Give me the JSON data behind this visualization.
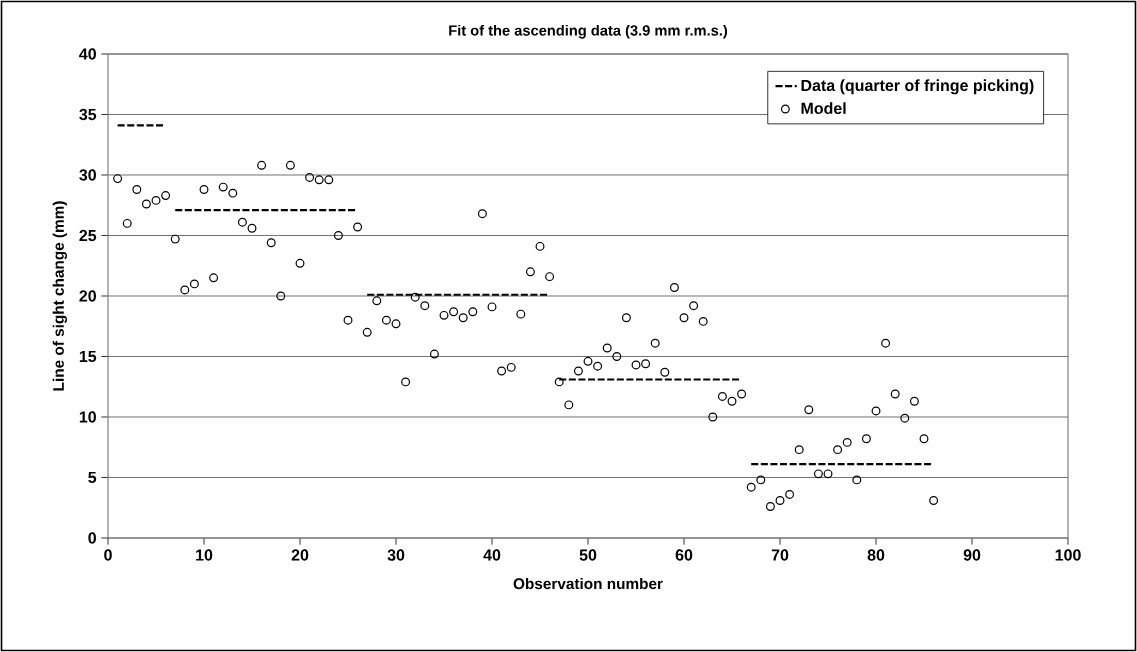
{
  "chart_data": {
    "type": "scatter",
    "title": "Fit of the ascending data (3.9 mm r.m.s.)",
    "xlabel": "Observation number",
    "ylabel": "Line of sight change (mm)",
    "xlim": [
      0,
      100
    ],
    "xticks": [
      0,
      10,
      20,
      30,
      40,
      50,
      60,
      70,
      80,
      90,
      100
    ],
    "ylim": [
      0,
      40
    ],
    "yticks": [
      0,
      5,
      10,
      15,
      20,
      25,
      30,
      35,
      40
    ],
    "grid": "y",
    "legend": "top right",
    "series": [
      {
        "name": "Data (quarter of fringe picking)",
        "type": "line",
        "line_style": "dashed",
        "marker": "none",
        "color": "#000000",
        "x": [
          1,
          2,
          3,
          4,
          5,
          6,
          6.5,
          7,
          8,
          9,
          10,
          11,
          12,
          13,
          14,
          15,
          16,
          17,
          18,
          19,
          20,
          21,
          22,
          23,
          24,
          25,
          26,
          26.5,
          27,
          28,
          29,
          30,
          31,
          32,
          33,
          34,
          35,
          36,
          37,
          38,
          39,
          40,
          41,
          42,
          43,
          44,
          45,
          46,
          46.5,
          47,
          48,
          49,
          50,
          51,
          52,
          53,
          54,
          55,
          56,
          57,
          58,
          59,
          60,
          61,
          62,
          63,
          64,
          65,
          66,
          66.5,
          67,
          68,
          69,
          70,
          71,
          72,
          73,
          74,
          75,
          76,
          77,
          78,
          79,
          80,
          81,
          82,
          83,
          84,
          85,
          86
        ],
        "values": [
          34.1,
          34.1,
          34.1,
          34.1,
          34.1,
          34.1,
          null,
          27.1,
          27.1,
          27.1,
          27.1,
          27.1,
          27.1,
          27.1,
          27.1,
          27.1,
          27.1,
          27.1,
          27.1,
          27.1,
          27.1,
          27.1,
          27.1,
          27.1,
          27.1,
          27.1,
          27.1,
          null,
          20.1,
          20.1,
          20.1,
          20.1,
          20.1,
          20.1,
          20.1,
          20.1,
          20.1,
          20.1,
          20.1,
          20.1,
          20.1,
          20.1,
          20.1,
          20.1,
          20.1,
          20.1,
          20.1,
          20.1,
          null,
          13.1,
          13.1,
          13.1,
          13.1,
          13.1,
          13.1,
          13.1,
          13.1,
          13.1,
          13.1,
          13.1,
          13.1,
          13.1,
          13.1,
          13.1,
          13.1,
          13.1,
          13.1,
          13.1,
          13.1,
          null,
          6.1,
          6.1,
          6.1,
          6.1,
          6.1,
          6.1,
          6.1,
          6.1,
          6.1,
          6.1,
          6.1,
          6.1,
          6.1,
          6.1,
          6.1,
          6.1,
          6.1,
          6.1,
          6.1,
          6.1
        ]
      },
      {
        "name": "Model",
        "marker": "circle",
        "color": "#000000",
        "x": [
          1,
          2,
          3,
          4,
          5,
          6,
          7,
          8,
          9,
          10,
          11,
          12,
          13,
          14,
          15,
          16,
          17,
          18,
          19,
          20,
          21,
          22,
          23,
          24,
          25,
          26,
          27,
          28,
          29,
          30,
          31,
          32,
          33,
          34,
          35,
          36,
          37,
          38,
          39,
          40,
          41,
          42,
          43,
          44,
          45,
          46,
          47,
          48,
          49,
          50,
          51,
          52,
          53,
          54,
          55,
          56,
          57,
          58,
          59,
          60,
          61,
          62,
          63,
          64,
          65,
          66,
          67,
          68,
          69,
          70,
          71,
          72,
          73,
          74,
          75,
          76,
          77,
          78,
          79,
          80,
          81,
          82,
          83,
          84,
          85,
          86
        ],
        "values": [
          29.7,
          26.0,
          28.8,
          27.6,
          27.9,
          28.3,
          24.7,
          20.5,
          21.0,
          28.8,
          21.5,
          29.0,
          28.5,
          26.1,
          25.6,
          30.8,
          24.4,
          20.0,
          30.8,
          22.7,
          29.8,
          29.6,
          29.6,
          25.0,
          18.0,
          25.7,
          17.0,
          19.6,
          18.0,
          17.7,
          12.9,
          19.9,
          19.2,
          15.2,
          18.4,
          18.7,
          18.2,
          18.7,
          26.8,
          19.1,
          13.8,
          14.1,
          18.5,
          22.0,
          24.1,
          21.6,
          12.9,
          11.0,
          13.8,
          14.6,
          14.2,
          15.7,
          15.0,
          18.2,
          14.3,
          14.4,
          16.1,
          13.7,
          20.7,
          18.2,
          19.2,
          17.9,
          10.0,
          11.7,
          11.3,
          11.9,
          4.2,
          4.8,
          2.6,
          3.1,
          3.6,
          7.3,
          10.6,
          5.3,
          5.3,
          7.3,
          7.9,
          4.8,
          8.2,
          10.5,
          16.1,
          11.9,
          9.9,
          11.3,
          8.2,
          3.1
        ]
      }
    ]
  }
}
